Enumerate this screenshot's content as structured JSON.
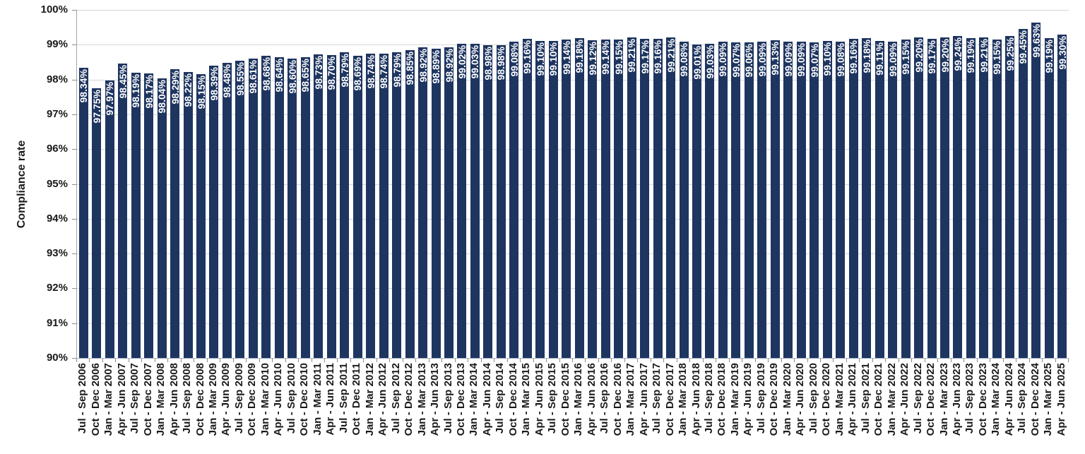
{
  "chart_data": {
    "type": "bar",
    "title": "",
    "xlabel": "",
    "ylabel": "Compliance rate",
    "ylim": [
      90,
      100
    ],
    "ytick_step": 1,
    "ytick_labels": [
      "100%",
      "99%",
      "98%",
      "97%",
      "96%",
      "95%",
      "94%",
      "93%",
      "92%",
      "91%",
      "90%"
    ],
    "grid": true,
    "legend": false,
    "bar_color": "#1e3560",
    "value_label_color": "#ffffff",
    "gridline_color": "#d6d6d6",
    "categories": [
      "Jul - Sep 2006",
      "Oct - Dec 2006",
      "Jan - Mar 2007",
      "Apr - Jun 2007",
      "Jul - Sep 2007",
      "Oct - Dec 2007",
      "Jan - Mar 2008",
      "Apr - Jun 2008",
      "Jul - Sep 2008",
      "Oct - Dec 2008",
      "Jan - Mar 2009",
      "Apr - Jun 2009",
      "Jul - Sep 2009",
      "Oct - Dec 2009",
      "Jan - Mar 2010",
      "Apr - Jun 2010",
      "Jul - Sep 2010",
      "Oct - Dec 2010",
      "Jan - Mar 2011",
      "Apr - Jun 2011",
      "Jul - Sep 2011",
      "Oct - Dec 2011",
      "Jan - Mar 2012",
      "Apr - Jun 2012",
      "Jul - Sep 2012",
      "Oct - Dec 2012",
      "Jan - Mar 2013",
      "Apr - Jun 2013",
      "Jul - Sep 2013",
      "Oct - Dec 2013",
      "Jan - Mar 2014",
      "Apr - Jun 2014",
      "Jul - Sep 2014",
      "Oct - Dec 2014",
      "Jan - Mar 2015",
      "Apr - Jun 2015",
      "Jul - Sep 2015",
      "Oct - Dec 2015",
      "Jan - Mar 2016",
      "Apr - Jun 2016",
      "Jul - Sep 2016",
      "Oct - Dec 2016",
      "Jan - Mar 2017",
      "Apr - Jun 2017",
      "Jul - Sep 2017",
      "Oct - Dec 2017",
      "Jan - Mar 2018",
      "Apr - Jun 2018",
      "Jul - Sep 2018",
      "Oct - Dec 2018",
      "Jan - Mar 2019",
      "Apr - Jun 2019",
      "Jul - Sep 2019",
      "Oct - Dec 2019",
      "Jan - Mar 2020",
      "Apr - Jun 2020",
      "Jul - Sep 2020",
      "Oct - Dec 2020",
      "Jan - Mar 2021",
      "Apr - Jun 2021",
      "Jul - Sep 2021",
      "Oct - Dec 2021",
      "Jan - Mar 2022",
      "Apr - Jun 2022",
      "Jul - Sep 2022",
      "Oct - Dec 2022",
      "Jan - Mar 2023",
      "Apr - Jun 2023",
      "Jul - Sep 2023",
      "Oct - Dec 2023",
      "Jan - Mar 2024",
      "Apr - Jun 2024",
      "Jul - Sep 2024",
      "Oct - Dec 2024",
      "Jan - Mar 2025",
      "Apr - Jun 2025"
    ],
    "values": [
      98.34,
      97.75,
      97.97,
      98.45,
      98.19,
      98.17,
      98.04,
      98.29,
      98.22,
      98.15,
      98.39,
      98.48,
      98.55,
      98.61,
      98.68,
      98.64,
      98.6,
      98.65,
      98.73,
      98.7,
      98.79,
      98.69,
      98.74,
      98.74,
      98.79,
      98.85,
      98.92,
      98.89,
      98.92,
      99.02,
      99.03,
      98.98,
      98.98,
      99.08,
      99.16,
      99.1,
      99.1,
      99.14,
      99.18,
      99.12,
      99.14,
      99.15,
      99.21,
      99.17,
      99.16,
      99.21,
      99.08,
      99.01,
      99.03,
      99.09,
      99.07,
      99.06,
      99.09,
      99.13,
      99.09,
      99.09,
      99.07,
      99.1,
      99.08,
      99.16,
      99.18,
      99.11,
      99.09,
      99.15,
      99.2,
      99.17,
      99.2,
      99.24,
      99.19,
      99.21,
      99.15,
      99.25,
      99.45,
      99.63,
      99.19,
      99.3
    ],
    "value_labels": [
      "98.34%",
      "97.75%",
      "97.97%",
      "98.45%",
      "98.19%",
      "98.17%",
      "98.04%",
      "98.29%",
      "98.22%",
      "98.15%",
      "98.39%",
      "98.48%",
      "98.55%",
      "98.61%",
      "98.68%",
      "98.64%",
      "98.60%",
      "98.65%",
      "98.73%",
      "98.70%",
      "98.79%",
      "98.69%",
      "98.74%",
      "98.74%",
      "98.79%",
      "98.85%",
      "98.92%",
      "98.89%",
      "98.92%",
      "99.02%",
      "99.03%",
      "98.98%",
      "98.98%",
      "99.08%",
      "99.16%",
      "99.10%",
      "99.10%",
      "99.14%",
      "99.18%",
      "99.12%",
      "99.14%",
      "99.15%",
      "99.21%",
      "99.17%",
      "99.16%",
      "99.21%",
      "99.08%",
      "99.01%",
      "99.03%",
      "99.09%",
      "99.07%",
      "99.06%",
      "99.09%",
      "99.13%",
      "99.09%",
      "99.09%",
      "99.07%",
      "99.10%",
      "99.08%",
      "99.16%",
      "99.18%",
      "99.11%",
      "99.09%",
      "99.15%",
      "99.20%",
      "99.17%",
      "99.20%",
      "99.24%",
      "99.19%",
      "99.21%",
      "99.15%",
      "99.25%",
      "99.45%",
      "99.63%",
      "99.19%",
      "99.30%"
    ]
  }
}
